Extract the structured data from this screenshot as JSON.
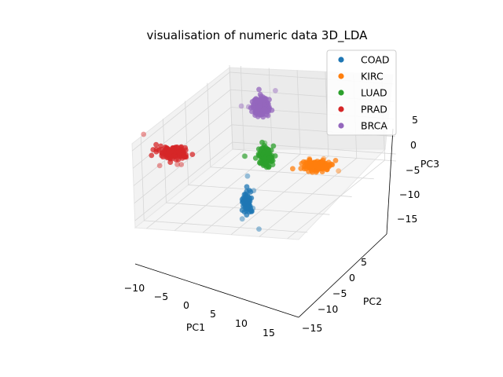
{
  "chart_data": {
    "type": "scatter",
    "projection": "3d",
    "title": "visualisation of numeric data 3D_LDA",
    "xlabel": "PC1",
    "ylabel": "PC2",
    "zlabel": "PC3",
    "xticks": [
      "−10",
      "−5",
      "0",
      "5",
      "10",
      "15"
    ],
    "yticks": [
      "−15",
      "−10",
      "−5",
      "0",
      "5"
    ],
    "zticks": [
      "−15",
      "−10",
      "−5",
      "0",
      "5"
    ],
    "grid": true,
    "legend_position": "top-right",
    "series": [
      {
        "name": "COAD",
        "color": "#1f77b4",
        "center": [
          3,
          -12,
          -10
        ],
        "points": 55
      },
      {
        "name": "KIRC",
        "color": "#ff7f0e",
        "center": [
          15,
          -3,
          -2
        ],
        "points": 150
      },
      {
        "name": "LUAD",
        "color": "#2ca02c",
        "center": [
          8,
          -2,
          -2
        ],
        "points": 140
      },
      {
        "name": "PRAD",
        "color": "#d62728",
        "center": [
          -12,
          3,
          0
        ],
        "points": 140
      },
      {
        "name": "BRCA",
        "color": "#9467bd",
        "center": [
          5,
          4,
          4
        ],
        "points": 300
      }
    ]
  }
}
